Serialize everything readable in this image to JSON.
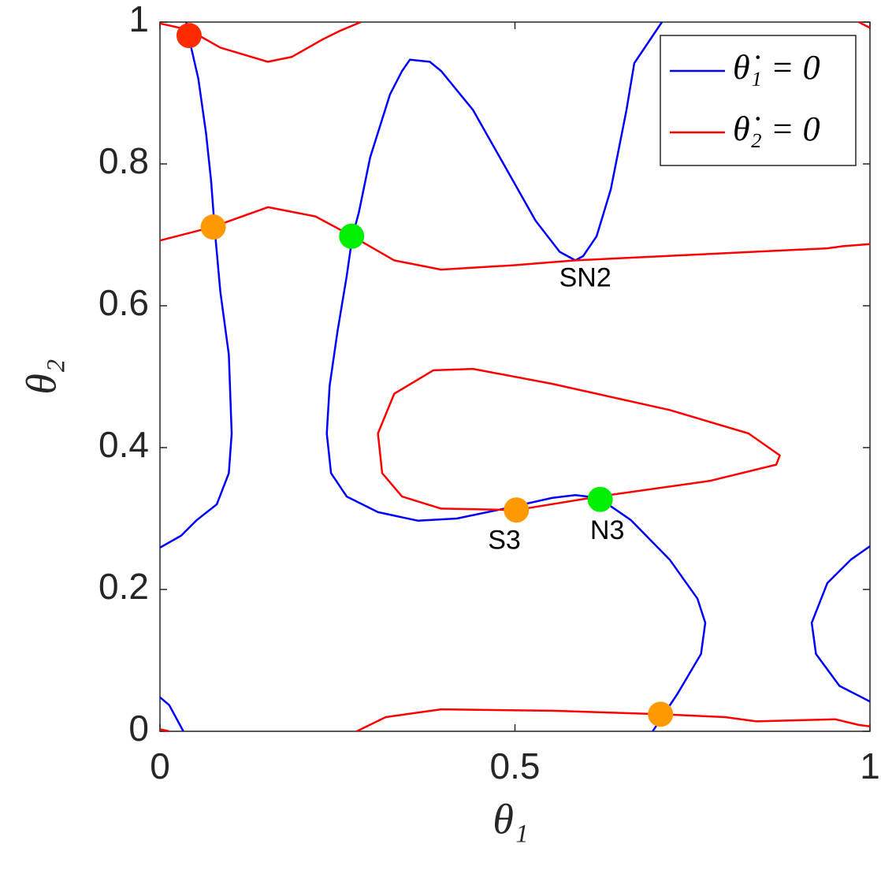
{
  "chart_data": {
    "type": "line",
    "xlabel": "θ₁",
    "ylabel": "θ₂",
    "xlim": [
      0,
      1
    ],
    "ylim": [
      0,
      1
    ],
    "xticks": [
      0,
      0.5,
      1
    ],
    "yticks": [
      0,
      0.2,
      0.4,
      0.6,
      0.8,
      1
    ],
    "grid": false,
    "legend": "northeast",
    "series": [
      {
        "name": "θ̇₁ = 0",
        "color": "#0000ff",
        "x": [
          0.037,
          0.044,
          0.054,
          0.065,
          0.072,
          0.077,
          0.085,
          0.097,
          0.101,
          0.097,
          0.08,
          0.052,
          0.03,
          0,
          null,
          0.707,
          0.668,
          0.657,
          0.635,
          0.615,
          0.596,
          0.585,
          0.563,
          0.529,
          0.485,
          0.441,
          0.396,
          0.38,
          0.352,
          0.341,
          0.324,
          0.296,
          0.28,
          0.271,
          0.263,
          0.25,
          0.239,
          0.235,
          0.241,
          0.263,
          0.307,
          0.363,
          0.418,
          0.485,
          0.552,
          0.585,
          0.618,
          0.663,
          0.718,
          0.757,
          0.768,
          0.762,
          0.729,
          0.707,
          0.694,
          null,
          1,
          0.973,
          0.94,
          0.918,
          0.924,
          0.957,
          1,
          null,
          0,
          0.013,
          0.033
        ],
        "y": [
          1,
          0.964,
          0.92,
          0.842,
          0.776,
          0.709,
          0.62,
          0.531,
          0.42,
          0.364,
          0.32,
          0.298,
          0.276,
          0.259,
          null,
          1,
          0.942,
          0.876,
          0.764,
          0.698,
          0.67,
          0.664,
          0.676,
          0.72,
          0.798,
          0.876,
          0.931,
          0.944,
          0.947,
          0.931,
          0.898,
          0.809,
          0.731,
          0.698,
          0.642,
          0.564,
          0.487,
          0.42,
          0.364,
          0.331,
          0.309,
          0.297,
          0.3,
          0.314,
          0.329,
          0.333,
          0.329,
          0.298,
          0.242,
          0.187,
          0.153,
          0.109,
          0.053,
          0.02,
          0,
          null,
          0.261,
          0.242,
          0.209,
          0.153,
          0.109,
          0.064,
          0.042,
          null,
          0.048,
          0.037,
          0
        ]
      },
      {
        "name": "θ̇₂ = 0",
        "color": "#ff0000",
        "x": [
          0,
          0.041,
          0.085,
          0.152,
          0.186,
          0.23,
          0.252,
          0.283,
          null,
          0.984,
          1,
          null,
          0,
          0.074,
          0.152,
          0.219,
          0.271,
          0.33,
          0.396,
          0.496,
          0.585,
          0.774,
          0.94,
          0.962,
          1,
          null,
          0.502,
          0.618,
          0.774,
          0.868,
          0.873,
          0.829,
          0.718,
          0.552,
          0.441,
          0.385,
          0.33,
          0.307,
          0.313,
          0.341,
          0.396,
          0.502,
          null,
          0.277,
          0.318,
          0.396,
          0.552,
          0.707,
          0.796,
          0.84,
          0.951,
          0.984,
          1,
          null,
          0,
          0.013
        ],
        "y": [
          0.998,
          0.989,
          0.964,
          0.944,
          0.951,
          0.976,
          0.987,
          1,
          null,
          1,
          0.992,
          null,
          0.692,
          0.711,
          0.739,
          0.726,
          0.698,
          0.664,
          0.651,
          0.657,
          0.664,
          0.673,
          0.681,
          0.684,
          0.687,
          null,
          0.312,
          0.331,
          0.353,
          0.376,
          0.389,
          0.42,
          0.453,
          0.49,
          0.511,
          0.509,
          0.476,
          0.42,
          0.364,
          0.331,
          0.314,
          0.312,
          null,
          0,
          0.02,
          0.031,
          0.029,
          0.024,
          0.02,
          0.014,
          0.017,
          0.009,
          0.007,
          null,
          0.003,
          0
        ]
      }
    ],
    "points": [
      {
        "x": 0.041,
        "y": 0.981,
        "color": "#ff2a00"
      },
      {
        "x": 0.075,
        "y": 0.711,
        "color": "#ff9900"
      },
      {
        "x": 0.27,
        "y": 0.698,
        "color": "#00ee00"
      },
      {
        "x": 0.502,
        "y": 0.312,
        "color": "#ff9900"
      },
      {
        "x": 0.62,
        "y": 0.327,
        "color": "#00ee00"
      },
      {
        "x": 0.705,
        "y": 0.024,
        "color": "#ff9900"
      }
    ],
    "annotations": [
      {
        "text": "SN2",
        "x": 0.599,
        "y": 0.637
      },
      {
        "text": "S3",
        "x": 0.485,
        "y": 0.267
      },
      {
        "text": "N3",
        "x": 0.63,
        "y": 0.281
      }
    ]
  }
}
